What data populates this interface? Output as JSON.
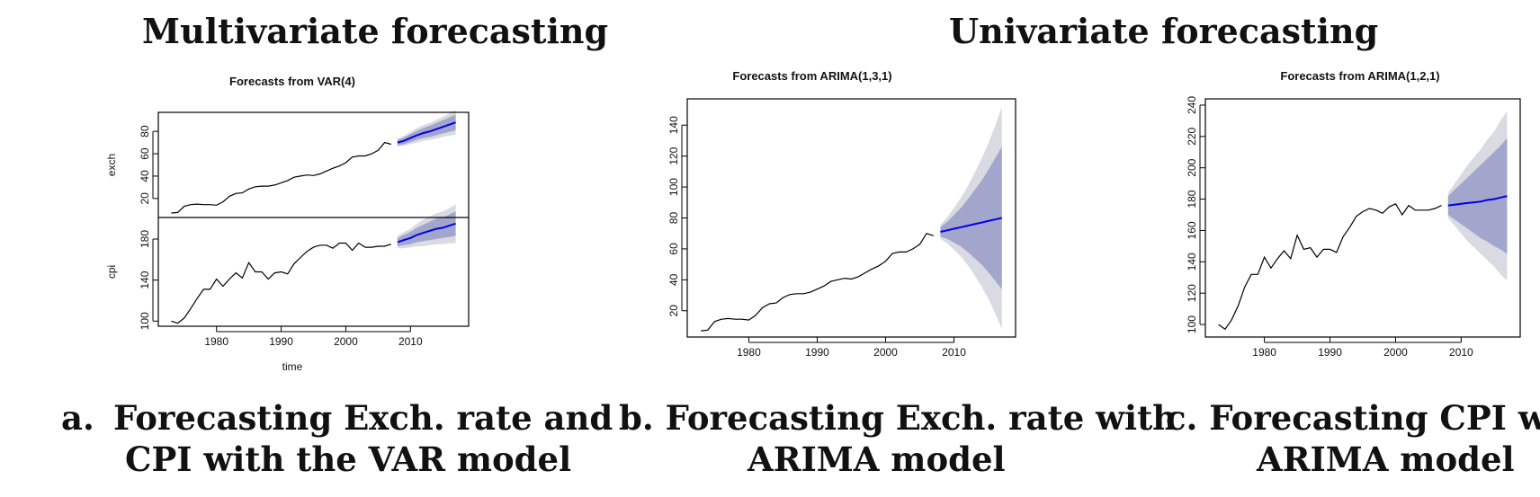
{
  "headings": {
    "multivariate": "Multivariate forecasting",
    "univariate": "Univariate forecasting"
  },
  "captions": {
    "a": {
      "marker": "a.",
      "line1": "Forecasting Exch. rate and",
      "line2": "CPI with the VAR model"
    },
    "b": {
      "line1": "b. Forecasting Exch. rate with",
      "line2": "ARIMA model"
    },
    "c": {
      "line1": "c.  Forecasting CPI with",
      "line2": "ARIMA model"
    }
  },
  "colors": {
    "history_line": "#000000",
    "forecast_line": "#0000e6",
    "band_80": "#a3a6cc",
    "band_95": "#dadae2"
  },
  "chart_data": [
    {
      "type": "line",
      "title": "Forecasts from VAR(4)",
      "xlabel": "time",
      "xlim": [
        1971,
        2019
      ],
      "x_ticks": [
        "1980",
        "1990",
        "2000",
        "2010"
      ],
      "panels": [
        {
          "ylabel": "exch",
          "ylim": [
            3,
            97
          ],
          "y_ticks": [
            "20",
            "40",
            "60",
            "80"
          ],
          "history": {
            "x": [
              1973,
              1974,
              1975,
              1976,
              1977,
              1978,
              1979,
              1980,
              1981,
              1982,
              1983,
              1984,
              1985,
              1986,
              1987,
              1988,
              1989,
              1990,
              1991,
              1992,
              1993,
              1994,
              1995,
              1996,
              1997,
              1998,
              1999,
              2000,
              2001,
              2002,
              2003,
              2004,
              2005,
              2006,
              2007
            ],
            "y": [
              7,
              7.5,
              13,
              14.5,
              15,
              14.5,
              14.5,
              14,
              17,
              22,
              24.5,
              25,
              28.5,
              30.5,
              31,
              31,
              32,
              34,
              36,
              39,
              40,
              41,
              40.5,
              42,
              44.5,
              47,
              49,
              52,
              57,
              58,
              58,
              60,
              63,
              70,
              68.5
            ]
          },
          "forecast": {
            "x": [
              2008,
              2009,
              2010,
              2011,
              2012,
              2013,
              2014,
              2015,
              2016,
              2017
            ],
            "mean": [
              70,
              71.5,
              74,
              76.5,
              78.5,
              80,
              82,
              84,
              86,
              88
            ],
            "lo80": [
              67.5,
              68.5,
              70.5,
              72.5,
              74,
              75,
              76.5,
              78,
              79.5,
              81
            ],
            "hi80": [
              72.5,
              74.5,
              77.5,
              80.5,
              83,
              85,
              87.5,
              90,
              92.5,
              95
            ],
            "lo95": [
              66.5,
              67,
              68.5,
              70,
              71.5,
              72.5,
              73.5,
              75,
              76,
              77
            ],
            "hi95": [
              73.5,
              76,
              79.5,
              83,
              85.5,
              87.5,
              90.5,
              93,
              96,
              99
            ]
          }
        },
        {
          "ylabel": "cpi",
          "ylim": [
            95,
            201
          ],
          "y_ticks": [
            "100",
            "140",
            "180"
          ],
          "history": {
            "x": [
              1973,
              1974,
              1975,
              1976,
              1977,
              1978,
              1979,
              1980,
              1981,
              1982,
              1983,
              1984,
              1985,
              1986,
              1987,
              1988,
              1989,
              1990,
              1991,
              1992,
              1993,
              1994,
              1995,
              1996,
              1997,
              1998,
              1999,
              2000,
              2001,
              2002,
              2003,
              2004,
              2005,
              2006,
              2007
            ],
            "y": [
              100,
              98,
              103,
              112,
              122,
              131,
              131,
              141,
              134,
              141,
              147,
              142,
              157,
              148,
              148,
              141,
              147,
              148,
              146,
              156,
              162,
              168,
              172,
              174,
              174,
              171,
              176,
              176,
              169,
              176,
              172,
              172,
              173,
              173,
              175
            ]
          },
          "forecast": {
            "x": [
              2008,
              2009,
              2010,
              2011,
              2012,
              2013,
              2014,
              2015,
              2016,
              2017
            ],
            "mean": [
              177,
              179,
              181,
              184,
              186,
              188,
              190,
              191,
              193,
              195
            ],
            "lo80": [
              173,
              174,
              175,
              177,
              178,
              179,
              180,
              181,
              182,
              183
            ],
            "hi80": [
              181,
              184,
              187,
              191,
              194,
              197,
              200,
              201,
              204,
              207
            ],
            "lo95": [
              171,
              171,
              172,
              173,
              173,
              174,
              175,
              175,
              176,
              176
            ],
            "hi95": [
              183,
              187,
              190,
              195,
              199,
              202,
              205,
              207,
              210,
              214
            ]
          }
        }
      ]
    },
    {
      "type": "line",
      "title": "Forecasts from ARIMA(1,3,1)",
      "xlim": [
        1971,
        2019
      ],
      "ylim": [
        3,
        157
      ],
      "x_ticks": [
        "1980",
        "1990",
        "2000",
        "2010"
      ],
      "y_ticks": [
        "20",
        "40",
        "60",
        "80",
        "100",
        "120",
        "140"
      ],
      "history": {
        "x": [
          1973,
          1974,
          1975,
          1976,
          1977,
          1978,
          1979,
          1980,
          1981,
          1982,
          1983,
          1984,
          1985,
          1986,
          1987,
          1988,
          1989,
          1990,
          1991,
          1992,
          1993,
          1994,
          1995,
          1996,
          1997,
          1998,
          1999,
          2000,
          2001,
          2002,
          2003,
          2004,
          2005,
          2006,
          2007
        ],
        "y": [
          7,
          7.5,
          13,
          14.5,
          15,
          14.5,
          14.5,
          14,
          17,
          22,
          24.5,
          25,
          28.5,
          30.5,
          31,
          31,
          32,
          34,
          36,
          39,
          40,
          41,
          40.5,
          42,
          44.5,
          47,
          49,
          52,
          57,
          58,
          58,
          60,
          63,
          70,
          68.5
        ]
      },
      "forecast": {
        "x": [
          2008,
          2009,
          2010,
          2011,
          2012,
          2013,
          2014,
          2015,
          2016,
          2017
        ],
        "mean": [
          71,
          72,
          73,
          74,
          75,
          76,
          77,
          78,
          79,
          80
        ],
        "lo80": [
          68,
          66.5,
          64,
          61.5,
          58,
          54,
          50,
          45,
          39.5,
          34
        ],
        "hi80": [
          74,
          77.5,
          82,
          86.5,
          92,
          98,
          104,
          111,
          118.5,
          126
        ],
        "lo95": [
          66.5,
          63.5,
          59.5,
          55,
          49.5,
          43,
          36,
          28,
          18.5,
          8
        ],
        "hi95": [
          75.5,
          80.5,
          86.5,
          93,
          100.5,
          109,
          118,
          128,
          139.5,
          152
        ]
      }
    },
    {
      "type": "line",
      "title": "Forecasts from ARIMA(1,2,1)",
      "xlim": [
        1971,
        2019
      ],
      "ylim": [
        92,
        244
      ],
      "x_ticks": [
        "1980",
        "1990",
        "2000",
        "2010"
      ],
      "y_ticks": [
        "100",
        "120",
        "140",
        "160",
        "180",
        "200",
        "220",
        "240"
      ],
      "history": {
        "x": [
          1973,
          1974,
          1975,
          1976,
          1977,
          1978,
          1979,
          1980,
          1981,
          1982,
          1983,
          1984,
          1985,
          1986,
          1987,
          1988,
          1989,
          1990,
          1991,
          1992,
          1993,
          1994,
          1995,
          1996,
          1997,
          1998,
          1999,
          2000,
          2001,
          2002,
          2003,
          2004,
          2005,
          2006,
          2007
        ],
        "y": [
          100,
          97,
          103,
          112,
          124,
          132,
          132,
          143,
          136,
          142,
          147,
          142,
          157,
          148,
          149,
          143,
          148,
          148,
          146,
          156,
          162,
          169,
          172,
          174,
          173,
          171,
          175,
          177,
          170,
          176,
          173,
          173,
          173,
          174,
          176
        ]
      },
      "forecast": {
        "x": [
          2008,
          2009,
          2010,
          2011,
          2012,
          2013,
          2014,
          2015,
          2016,
          2017
        ],
        "mean": [
          176,
          176.5,
          177,
          177.5,
          178,
          178.5,
          179.5,
          180,
          181,
          182
        ],
        "lo80": [
          170,
          167,
          164,
          161,
          158,
          155,
          153,
          150,
          148,
          145
        ],
        "hi80": [
          182,
          186,
          190,
          194,
          198,
          202,
          206,
          210,
          214,
          219
        ],
        "lo95": [
          168,
          163,
          158,
          153,
          149,
          145,
          141,
          137,
          132,
          128
        ],
        "hi95": [
          184,
          190,
          196,
          202,
          207,
          212,
          218,
          223,
          230,
          236
        ]
      }
    }
  ]
}
